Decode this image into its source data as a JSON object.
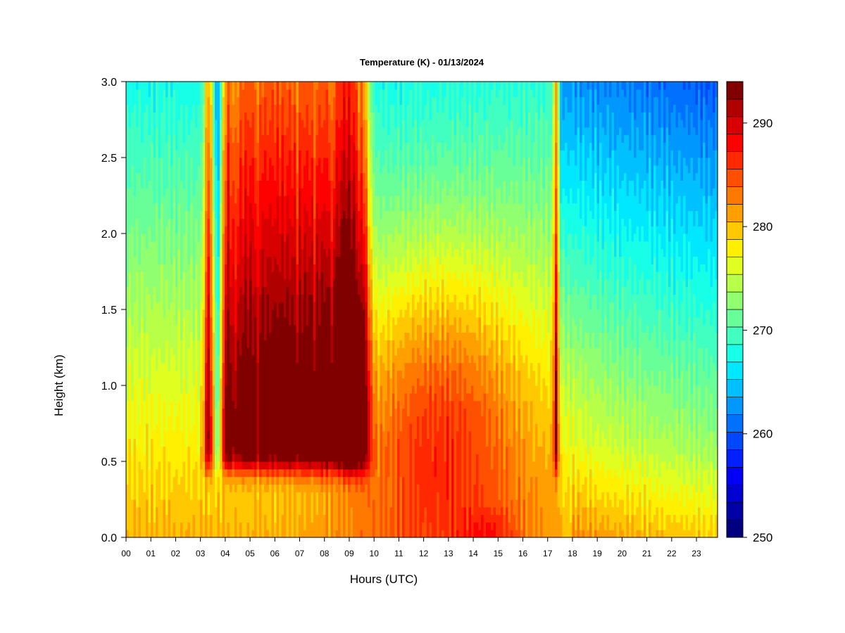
{
  "chart_data": {
    "type": "heatmap",
    "title": "Temperature (K) - 01/13/2024",
    "xlabel": "Hours (UTC)",
    "ylabel": "Height (km)",
    "x_ticks": [
      "00",
      "01",
      "02",
      "03",
      "04",
      "05",
      "06",
      "07",
      "08",
      "09",
      "10",
      "11",
      "12",
      "13",
      "14",
      "15",
      "16",
      "17",
      "18",
      "19",
      "20",
      "21",
      "22",
      "23"
    ],
    "xlim": [
      0,
      23.85
    ],
    "y_ticks": [
      "0.0",
      "0.5",
      "1.0",
      "1.5",
      "2.0",
      "2.5",
      "3.0"
    ],
    "ylim": [
      0,
      3.0
    ],
    "colorbar": {
      "min": 250,
      "max": 294,
      "levels": 22,
      "ticks": [
        "250",
        "260",
        "270",
        "280",
        "290"
      ],
      "colors": [
        "#00007f",
        "#0000a7",
        "#0000d0",
        "#0000f8",
        "#0020ff",
        "#0048ff",
        "#0070ff",
        "#0098ff",
        "#00c0ff",
        "#00e8ff",
        "#18ffe8",
        "#40ffc0",
        "#68ff98",
        "#90ff70",
        "#b8ff48",
        "#e0ff20",
        "#fff000",
        "#ffc800",
        "#ffa000",
        "#ff7800",
        "#ff5000",
        "#ff2800",
        "#ff0000",
        "#d80000",
        "#b00000",
        "#800000"
      ]
    },
    "field_description_samples": {
      "hours": [
        0,
        3,
        3.3,
        3.8,
        4,
        6,
        8,
        8.9,
        9.6,
        10,
        12,
        14,
        16,
        17.3,
        18,
        20,
        23.8
      ],
      "surface_K": [
        279,
        280,
        281,
        280,
        283,
        283,
        285,
        283,
        284,
        286,
        287,
        290,
        288,
        286,
        282,
        279,
        278
      ],
      "mid_1km_K": [
        276,
        277,
        289,
        279,
        290,
        290,
        291,
        293,
        291,
        289,
        289,
        288,
        284,
        288,
        278,
        276,
        274
      ],
      "top_3km_K": [
        266,
        266,
        281,
        270,
        282,
        283,
        284,
        284,
        281,
        272,
        270,
        268,
        266,
        272,
        263,
        260,
        256
      ]
    }
  }
}
